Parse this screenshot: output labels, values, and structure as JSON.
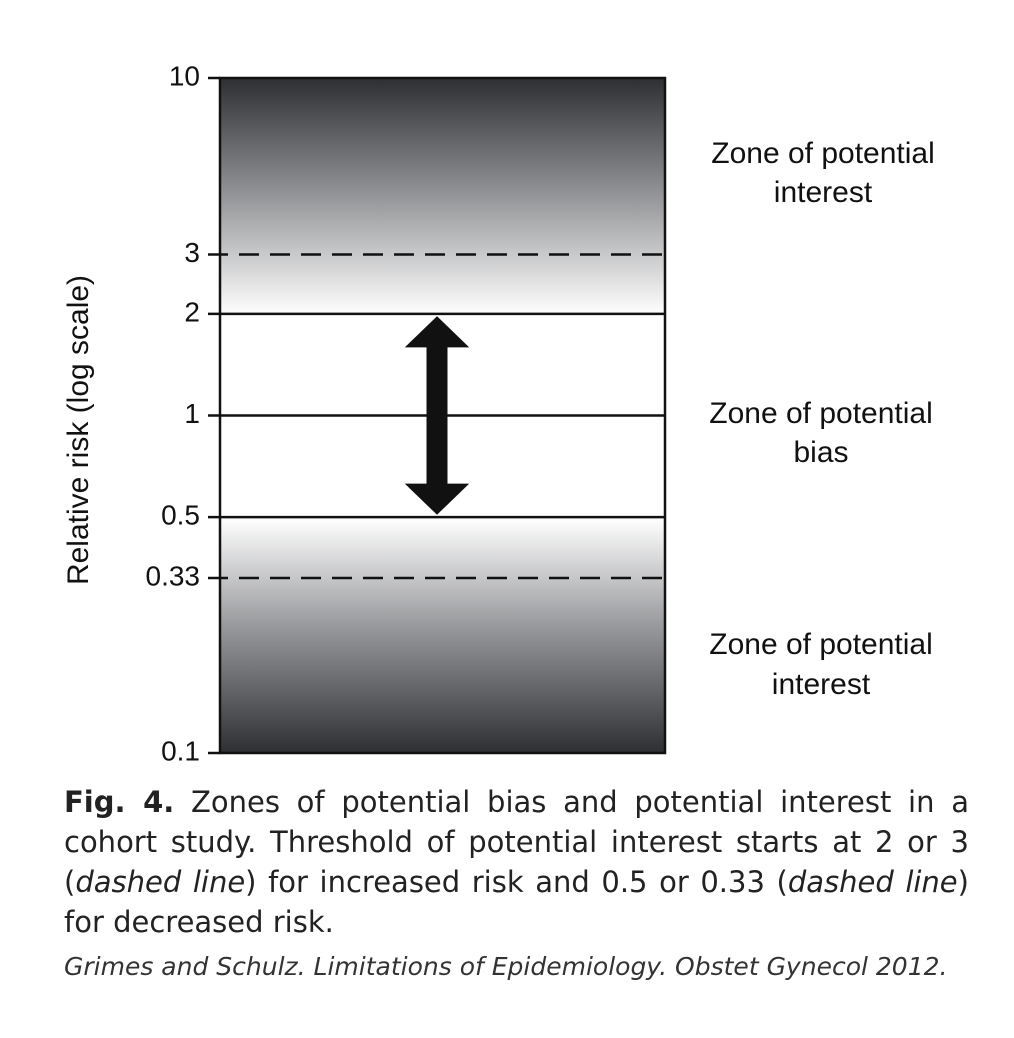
{
  "axis": {
    "title": "Relative risk (log scale)",
    "scale": "log",
    "ticks": [
      {
        "value": 10,
        "label": "10"
      },
      {
        "value": 3,
        "label": "3"
      },
      {
        "value": 2,
        "label": "2"
      },
      {
        "value": 1,
        "label": "1"
      },
      {
        "value": 0.5,
        "label": "0.5"
      },
      {
        "value": 0.33,
        "label": "0.33"
      },
      {
        "value": 0.1,
        "label": "0.1"
      }
    ],
    "range": [
      0.1,
      10
    ]
  },
  "lines": {
    "dashed": [
      3,
      0.33
    ],
    "solid": [
      2,
      1,
      0.5
    ]
  },
  "arrow": {
    "from": 0.5,
    "to": 2
  },
  "zones": {
    "upper": {
      "line1": "Zone of potential",
      "line2": "interest"
    },
    "middle": {
      "line1": "Zone of potential",
      "line2": "bias"
    },
    "lower": {
      "line1": "Zone of potential",
      "line2": "interest"
    }
  },
  "colors": {
    "dark": "#2e2f33",
    "light": "#ffffff",
    "ink": "#111111"
  },
  "caption": {
    "fig_label": "Fig. 4.",
    "part1": " Zones of potential bias and potential interest in a cohort study. Threshold of potential interest starts at 2 or 3 (",
    "dashed1": "dashed line",
    "part2": ") for increased risk and 0.5 or 0.33 (",
    "dashed2": "dashed line",
    "part3": ") for decreased risk."
  },
  "citation": "Grimes and Schulz. Limitations of Epidemiology. Obstet Gynecol 2012."
}
